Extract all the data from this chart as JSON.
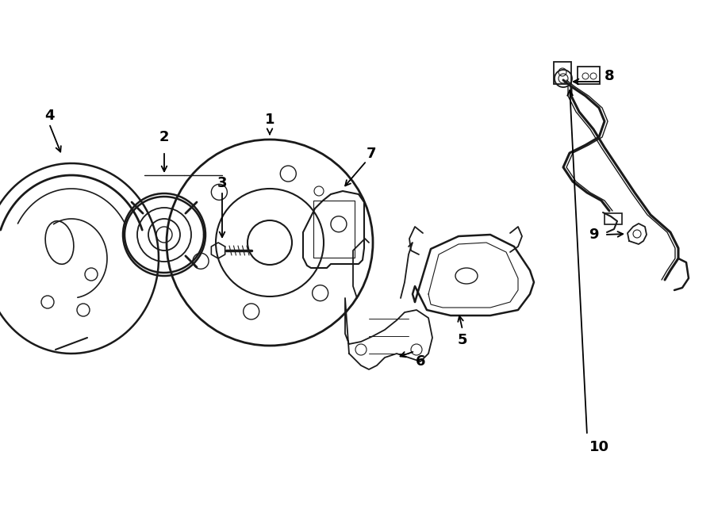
{
  "bg_color": "#ffffff",
  "line_color": "#1a1a1a",
  "lw": 1.4,
  "figsize": [
    9.0,
    6.61
  ],
  "dpi": 100,
  "xlim": [
    0,
    900
  ],
  "ylim": [
    0,
    661
  ]
}
